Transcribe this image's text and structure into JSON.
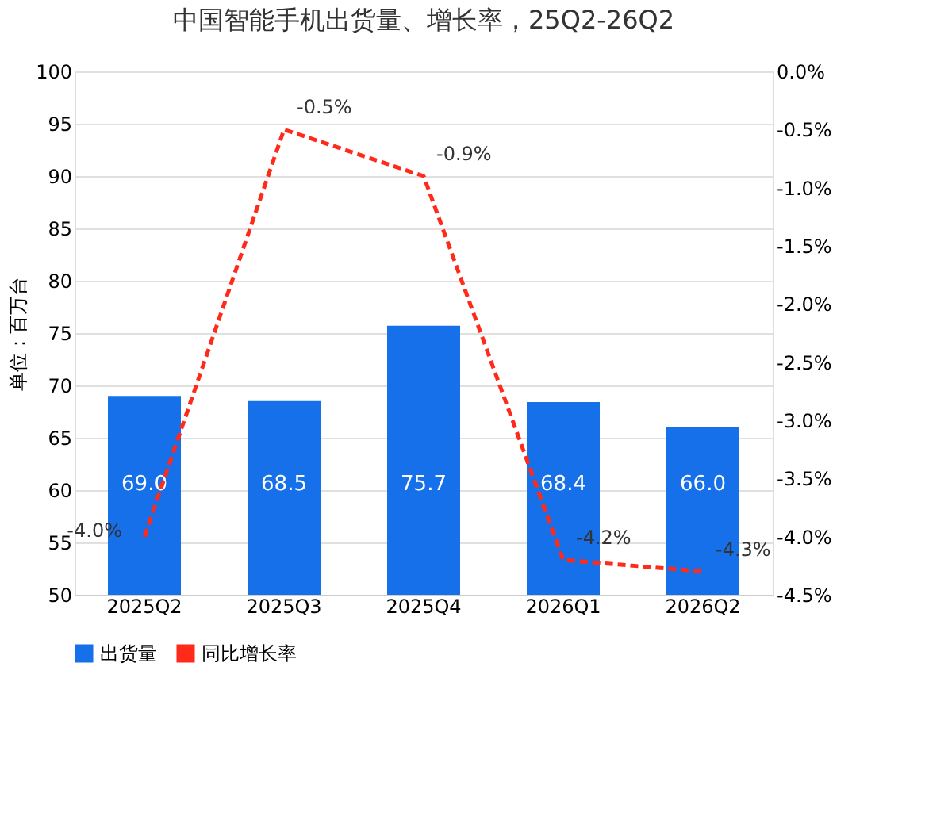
{
  "chart_data": {
    "type": "bar",
    "title": "中国智能手机出货量、增长率，25Q2-26Q2",
    "ylabel": "单位：百万台",
    "categories": [
      "2025Q2",
      "2025Q3",
      "2025Q4",
      "2026Q1",
      "2026Q2"
    ],
    "series": [
      {
        "name": "出货量",
        "color": "#1670ea",
        "values": [
          69.0,
          68.5,
          75.7,
          68.4,
          66.0
        ],
        "value_labels": [
          "69.0",
          "68.5",
          "75.7",
          "68.4",
          "66.0"
        ]
      },
      {
        "name": "同比增长率",
        "type": "line",
        "axis": "y2",
        "color": "#ff2a1a",
        "line_style": "dashed",
        "marker": "none",
        "values": [
          -4.0,
          -0.5,
          -0.9,
          -4.2,
          -4.3
        ],
        "value_labels": [
          "-4.0%",
          "-0.5%",
          "-0.9%",
          "-4.2%",
          "-4.3%"
        ]
      }
    ],
    "ylim": [
      50,
      100
    ],
    "yticks": [
      50,
      55,
      60,
      65,
      70,
      75,
      80,
      85,
      90,
      95,
      100
    ],
    "y2lim": [
      -4.5,
      0
    ],
    "y2ticks": [
      {
        "value": 0,
        "label": "0.0%"
      },
      {
        "value": -0.5,
        "label": "-0.5%"
      },
      {
        "value": -1.0,
        "label": "-1.0%"
      },
      {
        "value": -1.5,
        "label": "-1.5%"
      },
      {
        "value": -2.0,
        "label": "-2.0%"
      },
      {
        "value": -2.5,
        "label": "-2.5%"
      },
      {
        "value": -3.0,
        "label": "-3.0%"
      },
      {
        "value": -3.5,
        "label": "-3.5%"
      },
      {
        "value": -4.0,
        "label": "-4.0%"
      },
      {
        "value": -4.5,
        "label": "-4.5%"
      }
    ],
    "grid": "y",
    "legend": "bottom"
  }
}
